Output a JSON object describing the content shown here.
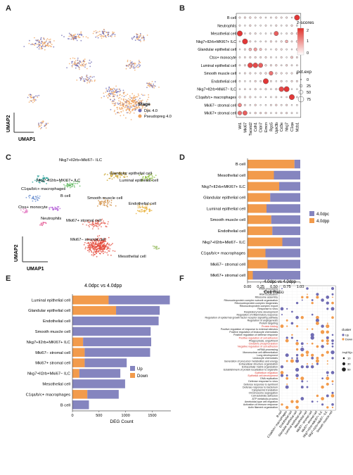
{
  "panels": {
    "A": "A",
    "B": "B",
    "C": "C",
    "D": "D",
    "E": "E",
    "F": "F"
  },
  "panel_A": {
    "xlabel": "UMAP1",
    "ylabel": "UMAP2",
    "legend_title": "Stage",
    "legend": [
      {
        "label": "Dpc 4.0",
        "color": "#6f6bb3"
      },
      {
        "label": "Pseudopreg 4.0",
        "color": "#f0a35c"
      }
    ]
  },
  "panel_B": {
    "rows": [
      "B cell",
      "Neutrophils",
      "Mesothelial cell",
      "Nkg7+Il2rb+MKI67+ ILC",
      "Glandular epithelial cell",
      "Ctss+ monocyte",
      "Luminal epithelial cell",
      "Smooth muscle cell",
      "Endothelial cell",
      "Nkg7+Il2rb+Mki67− ILC",
      "C1qa/b/c+ macrophages",
      "Mki67− stromal cell",
      "Mki67+ stromal cell"
    ],
    "cols": [
      "Wt1",
      "Mki67",
      "Tacstd2",
      "Cdh1",
      "Cldn7",
      "Emcn",
      "Rgs5",
      "Upk3b",
      "Cd3e",
      "Nkg7",
      "C1qa",
      "Mzb1"
    ],
    "colorbar_title": "z-scores",
    "colorbar_ticks": [
      "2",
      "1",
      "0"
    ],
    "size_title": "pct.exp",
    "size_legend": [
      "0",
      "25",
      "50",
      "75"
    ]
  },
  "panel_C": {
    "xlabel": "UMAP1",
    "ylabel": "UMAP2",
    "labels": [
      "Nkg7+Il2rb+Mki67− ILC",
      "Nkg7+Il2rb+MKI67+ ILC",
      "Glandular epithelial cell",
      "Luminal epithelial cell",
      "C1qa/b/c+ macrophages",
      "B cell",
      "Smooth muscle cell",
      "Endothelial cell",
      "Ctss+ monocyte",
      "Neutrophils",
      "Mki67+ stromal cell",
      "Mki67− stromal cell",
      "Mesothelial cell"
    ]
  },
  "chart_data": [
    {
      "type": "bar",
      "panel": "D",
      "categories": [
        "B cell",
        "Mesothelial cell",
        "Nkg7+Il2rb+MKI67+ ILC",
        "Glandular epithelial cell",
        "Luminal epithelial cell",
        "Smooth muscle cell",
        "Endothelial cell",
        "Nkg7+Il2rb+Mki67− ILC",
        "C1qa/b/c+ macrophages",
        "Mki67− stromal cell",
        "Mki67+ stromal cell"
      ],
      "series": [
        {
          "name": "4.0dpp",
          "color": "#f29b4c",
          "values": [
            0.89,
            0.5,
            0.6,
            0.43,
            0.36,
            0.45,
            0.47,
            0.66,
            0.34,
            0.38,
            0.1
          ]
        },
        {
          "name": "4.0dpc",
          "color": "#8585bf",
          "values": [
            0.11,
            0.5,
            0.4,
            0.57,
            0.64,
            0.55,
            0.53,
            0.34,
            0.66,
            0.62,
            0.9
          ]
        }
      ],
      "xlabel": "Cell Ratio",
      "xticks": [
        "0.00",
        "0.25",
        "0.50",
        "0.75",
        "1.00"
      ],
      "xlim": [
        0,
        1
      ]
    },
    {
      "type": "bar",
      "panel": "E",
      "title": "4.0dpc vs 4.0dpp",
      "categories": [
        "Luminal epithelial cell",
        "Glandular epithelial cell",
        "Endothelial cell",
        "Smooth muscle cell",
        "Nkg7+Il2rb+MKI67+ ILC",
        "Mki67− stromal cell",
        "Mki67+ stromal cell",
        "Nkg7+Il2rb+Mki67− ILC",
        "Mesothelial cell",
        "C1qa/b/c+ macrophages",
        "B cell"
      ],
      "series": [
        {
          "name": "Down",
          "color": "#f29b4c",
          "values": [
            680,
            820,
            0,
            0,
            200,
            230,
            230,
            130,
            0,
            280,
            0
          ]
        },
        {
          "name": "Up",
          "color": "#8585bf",
          "values": [
            1150,
            820,
            1620,
            1470,
            1280,
            1230,
            790,
            770,
            990,
            590,
            310
          ]
        }
      ],
      "xlabel": "DEG Count",
      "xticks": [
        "0",
        "500",
        "1000",
        "1500"
      ],
      "xlim": [
        0,
        1850
      ]
    },
    {
      "type": "scatter",
      "panel": "F",
      "title": "4.0dpc vs 4.0dpp",
      "terms": [
        {
          "label": "rRNA processing",
          "red": false
        },
        {
          "label": "RNA splicing",
          "red": false
        },
        {
          "label": "RNA localization",
          "red": false
        },
        {
          "label": "Ribosome assembly",
          "red": false
        },
        {
          "label": "Ribonucleoprotein complex subunit organization",
          "red": false
        },
        {
          "label": "Ribonucleoprotein complex biogenesis",
          "red": false
        },
        {
          "label": "Ribonucleoprotein complex export",
          "red": false
        },
        {
          "label": "Response to virus",
          "red": false
        },
        {
          "label": "Respiratory tube development",
          "red": false
        },
        {
          "label": "Regulation of inflammatory response",
          "red": false
        },
        {
          "label": "Regulation of epidermal growth factor receptor signaling pathway",
          "red": false
        },
        {
          "label": "Regulation of angiogenesis",
          "red": false
        },
        {
          "label": "Protein targeting",
          "red": false
        },
        {
          "label": "Protein folding",
          "red": true
        },
        {
          "label": "Positive regulation of response to external stimulus",
          "red": false
        },
        {
          "label": "Positive regulation of leukocyte chemotaxis",
          "red": false
        },
        {
          "label": "Positive regulation of defense response",
          "red": false
        },
        {
          "label": "Positive regulation of cell adhesion",
          "red": true
        },
        {
          "label": "Phagocytosis, engulfment",
          "red": false
        },
        {
          "label": "Oxidative phosphorylation",
          "red": true
        },
        {
          "label": "Negative regulation of cell adhesion",
          "red": true
        },
        {
          "label": "mRNA processing",
          "red": false
        },
        {
          "label": "Mononuclear cell differentiation",
          "red": false
        },
        {
          "label": "Lung development",
          "red": false
        },
        {
          "label": "Leukocyte chemotaxis",
          "red": false
        },
        {
          "label": "Generation of precursor metabolites and energy",
          "red": false
        },
        {
          "label": "Extracellular structure organization",
          "red": false
        },
        {
          "label": "Extracellular matrix organization",
          "red": false
        },
        {
          "label": "Establishment of protein localization to organelle",
          "red": false
        },
        {
          "label": "Epithelium migration",
          "red": true
        },
        {
          "label": "Epithelial cell development",
          "red": true
        },
        {
          "label": "DNA replication",
          "red": false
        },
        {
          "label": "Defense response to virus",
          "red": false
        },
        {
          "label": "Defense response to symbiont",
          "red": false
        },
        {
          "label": "Defense response to bacterium",
          "red": false
        },
        {
          "label": "Cytoplasmic translation",
          "red": false
        },
        {
          "label": "Chromosome segregation",
          "red": false
        },
        {
          "label": "Cell-substrate adhesion",
          "red": false
        },
        {
          "label": "ATP metabolic process",
          "red": false
        },
        {
          "label": "Ameboidal-type cell migration",
          "red": false
        },
        {
          "label": "Activation of immune response",
          "red": false
        },
        {
          "label": "Actin filament organization",
          "red": false
        }
      ],
      "columns": [
        "B cell",
        "C1qa/b/c+ macrophages",
        "Endothelial cell",
        "Glandular epithelial cell",
        "Luminal epithelial cell",
        "Mesothelial cell",
        "Mki67− stromal cell",
        "Mki67+ stromal cell",
        "Nkg7+Il2rb+MKI67+ ILC",
        "Nkg7+Il2rb+Mki67− ILC",
        "Smooth muscle cell"
      ],
      "legend_title": "cluster",
      "legend": [
        {
          "label": "Up",
          "color": "#6f6bb3"
        },
        {
          "label": "Down",
          "color": "#f29b4c"
        }
      ],
      "size_title": "-log10(p.adjust)",
      "size_legend": [
        "10",
        "30",
        "50"
      ]
    }
  ]
}
